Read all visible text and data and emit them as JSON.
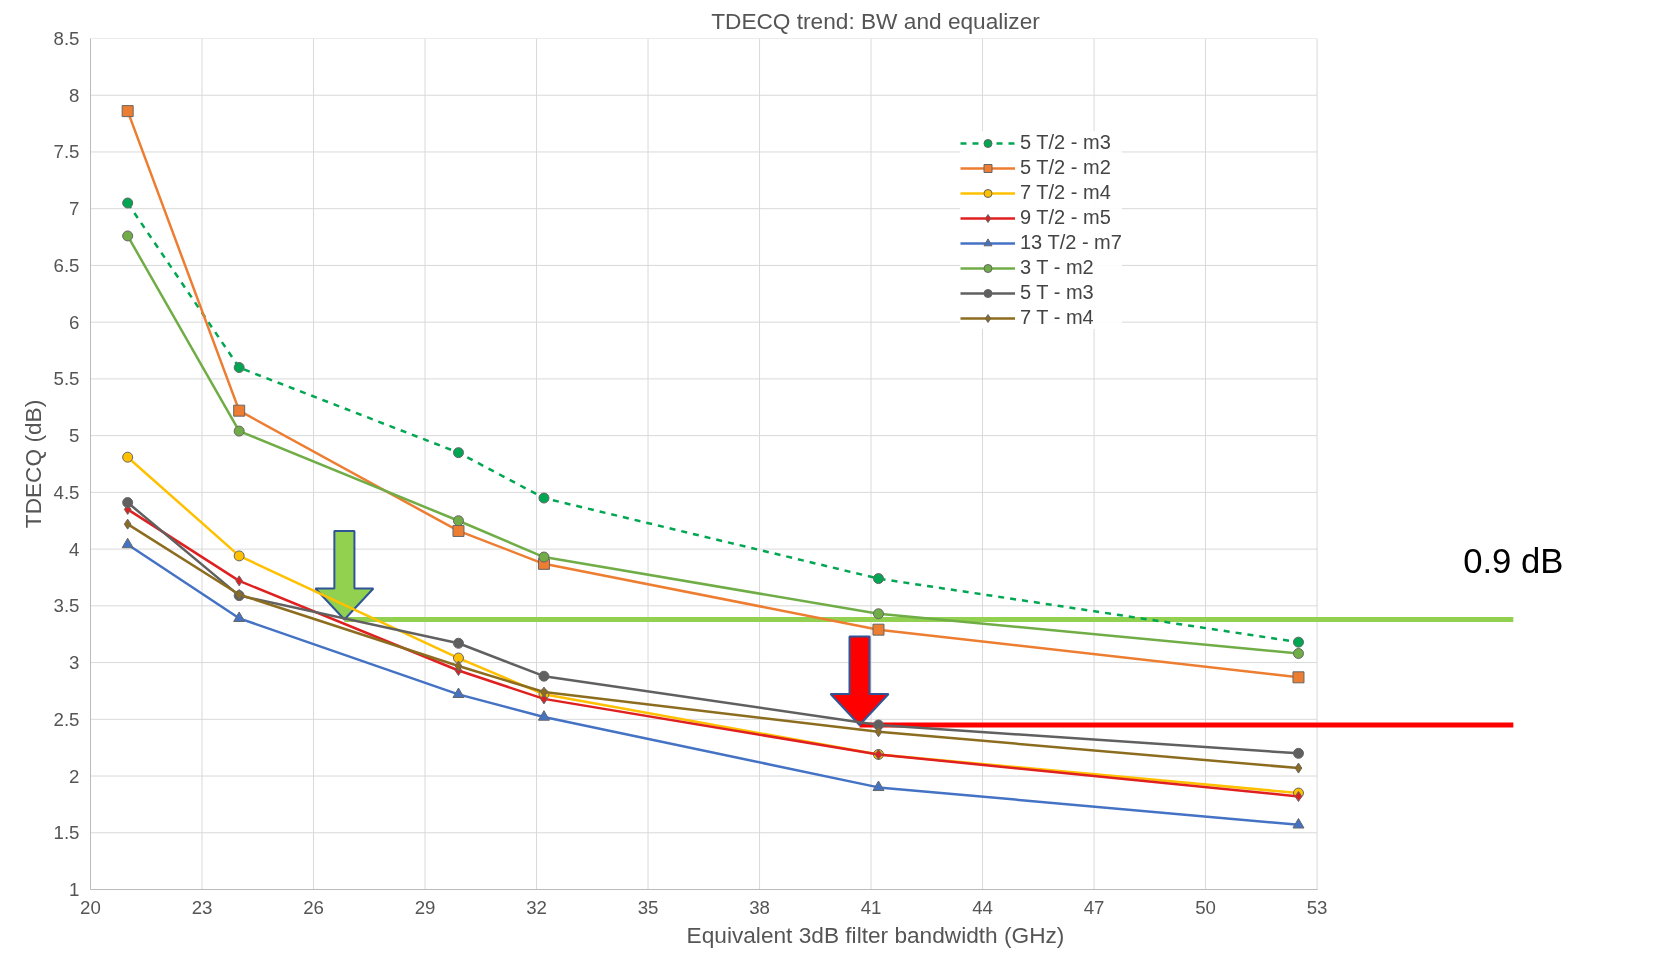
{
  "chart_data": {
    "type": "line",
    "title": "TDECQ trend: BW and equalizer",
    "xlabel": "Equivalent 3dB filter bandwidth (GHz)",
    "ylabel": "TDECQ (dB)",
    "x": [
      21,
      24,
      29.9,
      32.2,
      41.2,
      52.5
    ],
    "xlim": [
      20,
      53
    ],
    "xticks": [
      20,
      23,
      26,
      29,
      32,
      35,
      38,
      41,
      44,
      47,
      50,
      53
    ],
    "ylim": [
      1,
      8.5
    ],
    "yticks": [
      1,
      1.5,
      2,
      2.5,
      3,
      3.5,
      4,
      4.5,
      5,
      5.5,
      6,
      6.5,
      7,
      7.5,
      8,
      8.5
    ],
    "grid": true,
    "legend": "top right",
    "series": [
      {
        "name": "5 T/2 - m3",
        "color": "#00a651",
        "marker": "circle",
        "line_style": "dashed",
        "values": [
          7.05,
          5.6,
          4.85,
          4.45,
          3.74,
          3.18
        ]
      },
      {
        "name": "5 T/2 - m2",
        "color": "#ed7d31",
        "marker": "square",
        "values": [
          7.86,
          5.22,
          4.16,
          3.87,
          3.29,
          2.87
        ]
      },
      {
        "name": "7 T/2 - m4",
        "color": "#ffc000",
        "marker": "circle",
        "values": [
          4.81,
          3.94,
          3.04,
          2.72,
          2.19,
          1.85
        ]
      },
      {
        "name": "9 T/2 - m5",
        "color": "#e02020",
        "marker": "diamond",
        "values": [
          4.35,
          3.72,
          2.93,
          2.68,
          2.19,
          1.82
        ]
      },
      {
        "name": "13 T/2 - m7",
        "color": "#4472c4",
        "marker": "triangle",
        "values": [
          4.04,
          3.39,
          2.72,
          2.52,
          1.9,
          1.57
        ]
      },
      {
        "name": "3 T - m2",
        "color": "#70ad47",
        "marker": "circle",
        "values": [
          6.76,
          5.04,
          4.25,
          3.93,
          3.43,
          3.08
        ]
      },
      {
        "name": "5 T - m3",
        "color": "#606060",
        "marker": "circle",
        "values": [
          4.41,
          3.59,
          3.17,
          2.88,
          2.45,
          2.2
        ]
      },
      {
        "name": "7 T - m4",
        "color": "#8c6d1f",
        "marker": "diamond",
        "values": [
          4.22,
          3.6,
          2.97,
          2.74,
          2.39,
          2.07
        ]
      }
    ],
    "ref_lines": [
      {
        "axis": "y",
        "value": 3.38,
        "color": "#92d050"
      },
      {
        "axis": "y",
        "value": 2.45,
        "color": "#ff0000"
      }
    ],
    "annotations": [
      "0.9 dB"
    ]
  }
}
